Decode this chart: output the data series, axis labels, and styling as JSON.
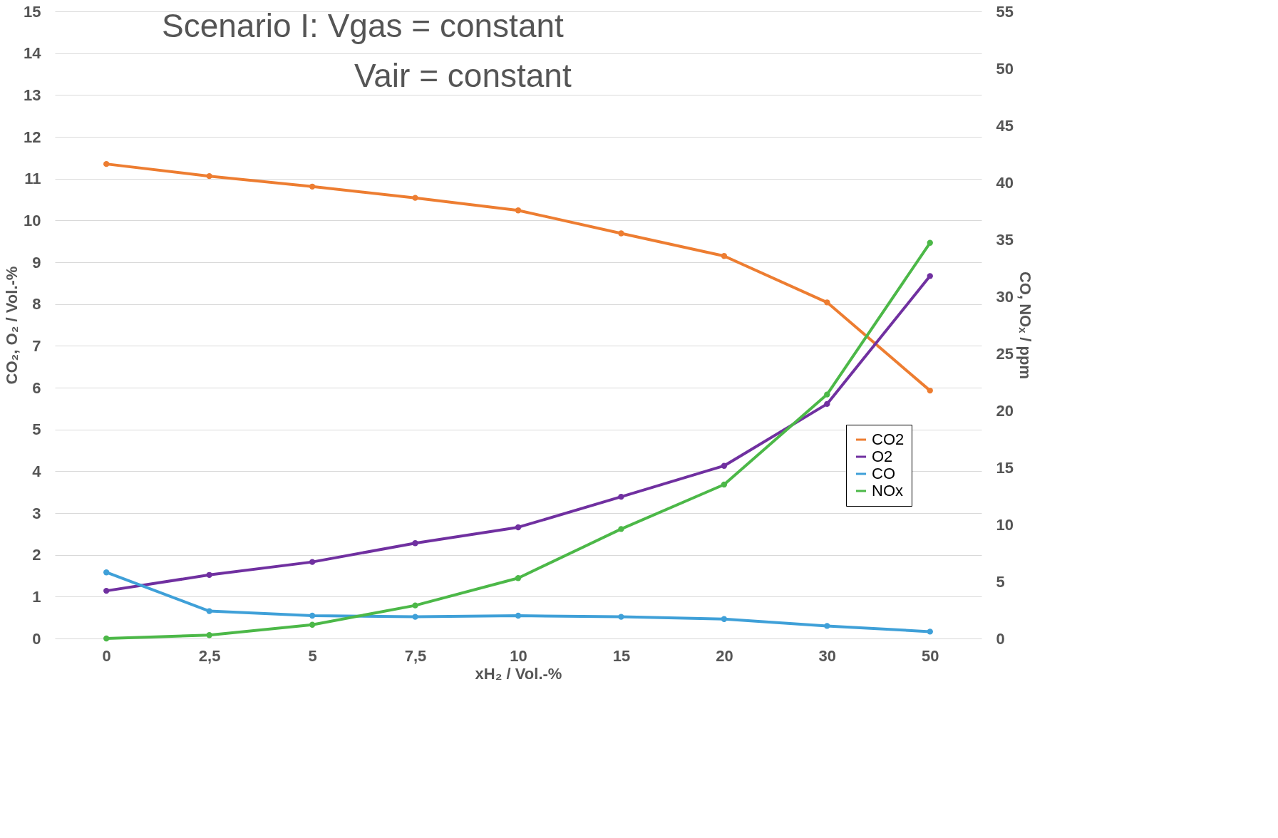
{
  "chart_data": {
    "type": "line",
    "title": "Scenario I: Vgas = constant",
    "subtitle": "Vair = constant",
    "xlabel": "xH₂ / Vol.-%",
    "ylabel": "CO₂, O₂ / Vol.-%",
    "y2label": "CO, NOₓ / ppm",
    "categories": [
      "0",
      "2,5",
      "5",
      "7,5",
      "10",
      "15",
      "20",
      "30",
      "50"
    ],
    "series": [
      {
        "name": "CO2",
        "color": "#ed7d31",
        "values": [
          11.35,
          11.06,
          10.81,
          10.54,
          10.24,
          9.69,
          9.15,
          8.04,
          5.93
        ]
      },
      {
        "name": "O2",
        "color": "#7030a0",
        "values": [
          1.14,
          1.52,
          1.83,
          2.28,
          2.66,
          3.39,
          4.13,
          5.61,
          8.67
        ]
      },
      {
        "name": "CO",
        "color": "#3fa0d8",
        "axis": "y2",
        "values": [
          5.8,
          2.4,
          2.0,
          1.9,
          2.0,
          1.9,
          1.7,
          1.1,
          0.6
        ]
      },
      {
        "name": "NOx",
        "color": "#4cb848",
        "axis": "y2",
        "values": [
          0.0,
          0.3,
          1.2,
          2.9,
          5.3,
          9.6,
          13.5,
          21.4,
          34.7
        ]
      }
    ],
    "ylim": [
      0,
      15
    ],
    "yticks": [
      0,
      1,
      2,
      3,
      4,
      5,
      6,
      7,
      8,
      9,
      10,
      11,
      12,
      13,
      14,
      15
    ],
    "y2lim": [
      0,
      55
    ],
    "y2ticks": [
      0,
      5,
      10,
      15,
      20,
      25,
      30,
      35,
      40,
      45,
      50,
      55
    ],
    "grid": "y",
    "legend": "bottom right",
    "marker": "circle",
    "line_style": "solid"
  }
}
